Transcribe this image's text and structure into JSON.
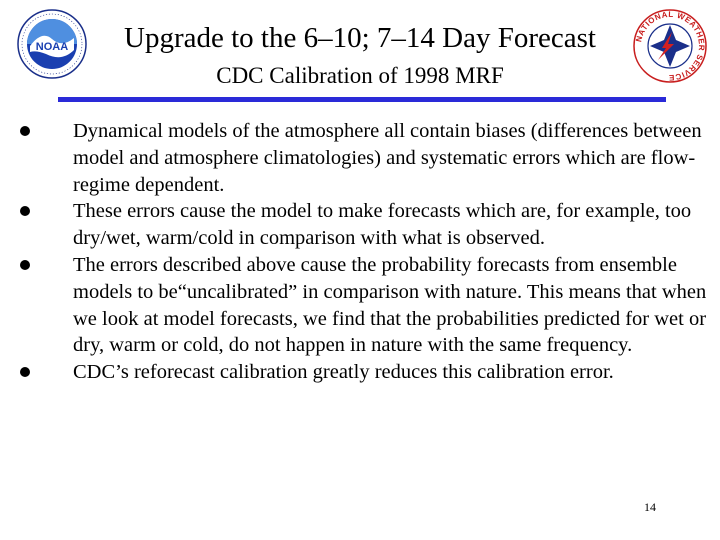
{
  "slide": {
    "title": "Upgrade to the 6–10; 7–14 Day Forecast",
    "subtitle": "CDC Calibration of 1998 MRF",
    "page_number": "14",
    "accent_color": "#2a2ad8"
  },
  "logos": {
    "left": {
      "icon": "noaa-logo-icon",
      "text": "NOAA"
    },
    "right": {
      "icon": "national-weather-service-logo-icon",
      "text": "NATIONAL WEATHER SERVICE"
    }
  },
  "bullets": [
    {
      "text": "Dynamical models of the atmosphere all contain biases (differences between model and atmosphere climatologies) and systematic errors which are flow-regime dependent."
    },
    {
      "text": "These errors cause the model to make forecasts which are, for example, too dry/wet, warm/cold in comparison with what is observed."
    },
    {
      "text": "The errors described above cause the probability forecasts from ensemble models to be“uncalibrated” in comparison with nature. This means that when we look at model forecasts, we find that the probabilities predicted for wet or dry, warm or cold, do not happen in nature with the same frequency."
    },
    {
      "text": "CDC’s reforecast calibration greatly reduces this calibration error."
    }
  ]
}
